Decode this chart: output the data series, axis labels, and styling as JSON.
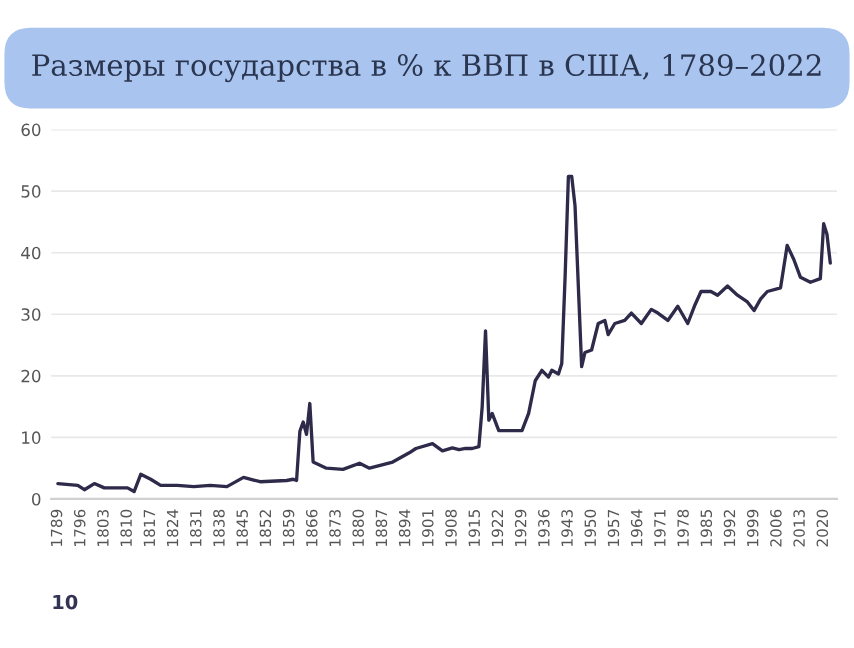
{
  "chart_data": {
    "type": "line",
    "title": "Размеры государства в % к ВВП в США, 1789–2022",
    "x": [
      1789,
      1795,
      1797,
      1800,
      1803,
      1810,
      1812,
      1814,
      1817,
      1820,
      1825,
      1830,
      1835,
      1840,
      1845,
      1850,
      1858,
      1860,
      1861,
      1862,
      1863,
      1864,
      1865,
      1866,
      1870,
      1875,
      1880,
      1883,
      1890,
      1895,
      1897,
      1902,
      1905,
      1908,
      1910,
      1912,
      1914,
      1916,
      1917,
      1918,
      1919,
      1920,
      1922,
      1929,
      1931,
      1933,
      1935,
      1937,
      1938,
      1940,
      1941,
      1942,
      1943,
      1944,
      1945,
      1947,
      1948,
      1950,
      1952,
      1954,
      1955,
      1957,
      1960,
      1962,
      1965,
      1968,
      1970,
      1973,
      1976,
      1979,
      1981,
      1983,
      1986,
      1988,
      1991,
      1994,
      1997,
      1999,
      2001,
      2003,
      2007,
      2009,
      2011,
      2013,
      2016,
      2019,
      2020,
      2021,
      2022
    ],
    "series": [
      {
        "color": "#2e2a4a",
        "values": [
          2.5,
          2.2,
          1.5,
          2.5,
          1.8,
          1.8,
          1.2,
          4,
          3.2,
          2.2,
          2.2,
          2,
          2.2,
          2,
          3.5,
          2.8,
          3,
          3.2,
          3,
          11,
          12.5,
          10.5,
          15.5,
          6,
          5,
          4.8,
          5.8,
          5,
          6,
          7.5,
          8.2,
          9,
          7.8,
          8.3,
          8,
          8.2,
          8.2,
          8.5,
          15,
          27.3,
          12.8,
          13.9,
          11.1,
          11.1,
          13.9,
          19.2,
          20.9,
          19.8,
          20.9,
          20.3,
          22,
          36,
          52.4,
          52.4,
          47.6,
          21.5,
          23.8,
          24.2,
          28.5,
          29,
          26.7,
          28.5,
          29,
          30.2,
          28.5,
          30.8,
          30.2,
          29,
          31.3,
          28.5,
          31.3,
          33.7,
          33.7,
          33.1,
          34.6,
          33.1,
          32,
          30.6,
          32.5,
          33.7,
          34.3,
          41.2,
          38.9,
          36,
          35.2,
          35.8,
          44.7,
          43,
          38.3
        ]
      }
    ],
    "xlim": [
      1787,
      2024
    ],
    "xticks": [
      1789,
      1796,
      1803,
      1810,
      1817,
      1824,
      1831,
      1838,
      1845,
      1852,
      1859,
      1866,
      1873,
      1880,
      1887,
      1894,
      1901,
      1908,
      1915,
      1922,
      1929,
      1936,
      1943,
      1950,
      1957,
      1964,
      1971,
      1978,
      1985,
      1992,
      1999,
      2006,
      2013,
      2020
    ],
    "ylim": [
      0,
      60
    ],
    "yticks": [
      0,
      10,
      20,
      30,
      40,
      50,
      60
    ],
    "grid": "y",
    "annotations": [
      "10"
    ]
  }
}
